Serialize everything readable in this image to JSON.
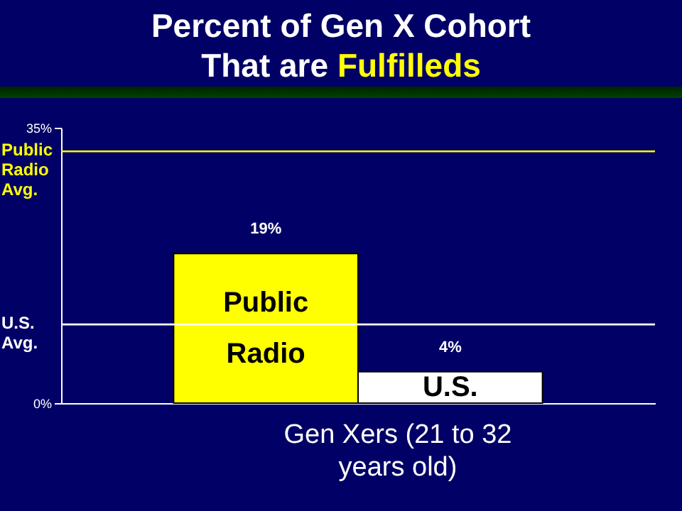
{
  "chart_data": {
    "type": "bar",
    "title": "Percent of Gen X Cohort That are Fulfilleds",
    "xlabel": "Gen Xers (21 to 32 years old)",
    "categories": [
      "Public Radio",
      "U.S."
    ],
    "values": [
      19,
      4
    ],
    "colors": [
      "#ffff00",
      "#ffffff"
    ],
    "value_labels": [
      "19%",
      "4%"
    ],
    "ylim": [
      0,
      35
    ],
    "yticks": [
      {
        "value": 0,
        "label": "0%"
      },
      {
        "value": 35,
        "label": "35%"
      }
    ],
    "ref_lines": [
      {
        "axis": "y",
        "value": 32,
        "label": "Public Radio Avg.",
        "color": "#ffff00"
      },
      {
        "axis": "y",
        "value": 10,
        "label": "U.S. Avg.",
        "color": "#ffffff"
      }
    ],
    "tick_labels": "y",
    "grid": false
  }
}
